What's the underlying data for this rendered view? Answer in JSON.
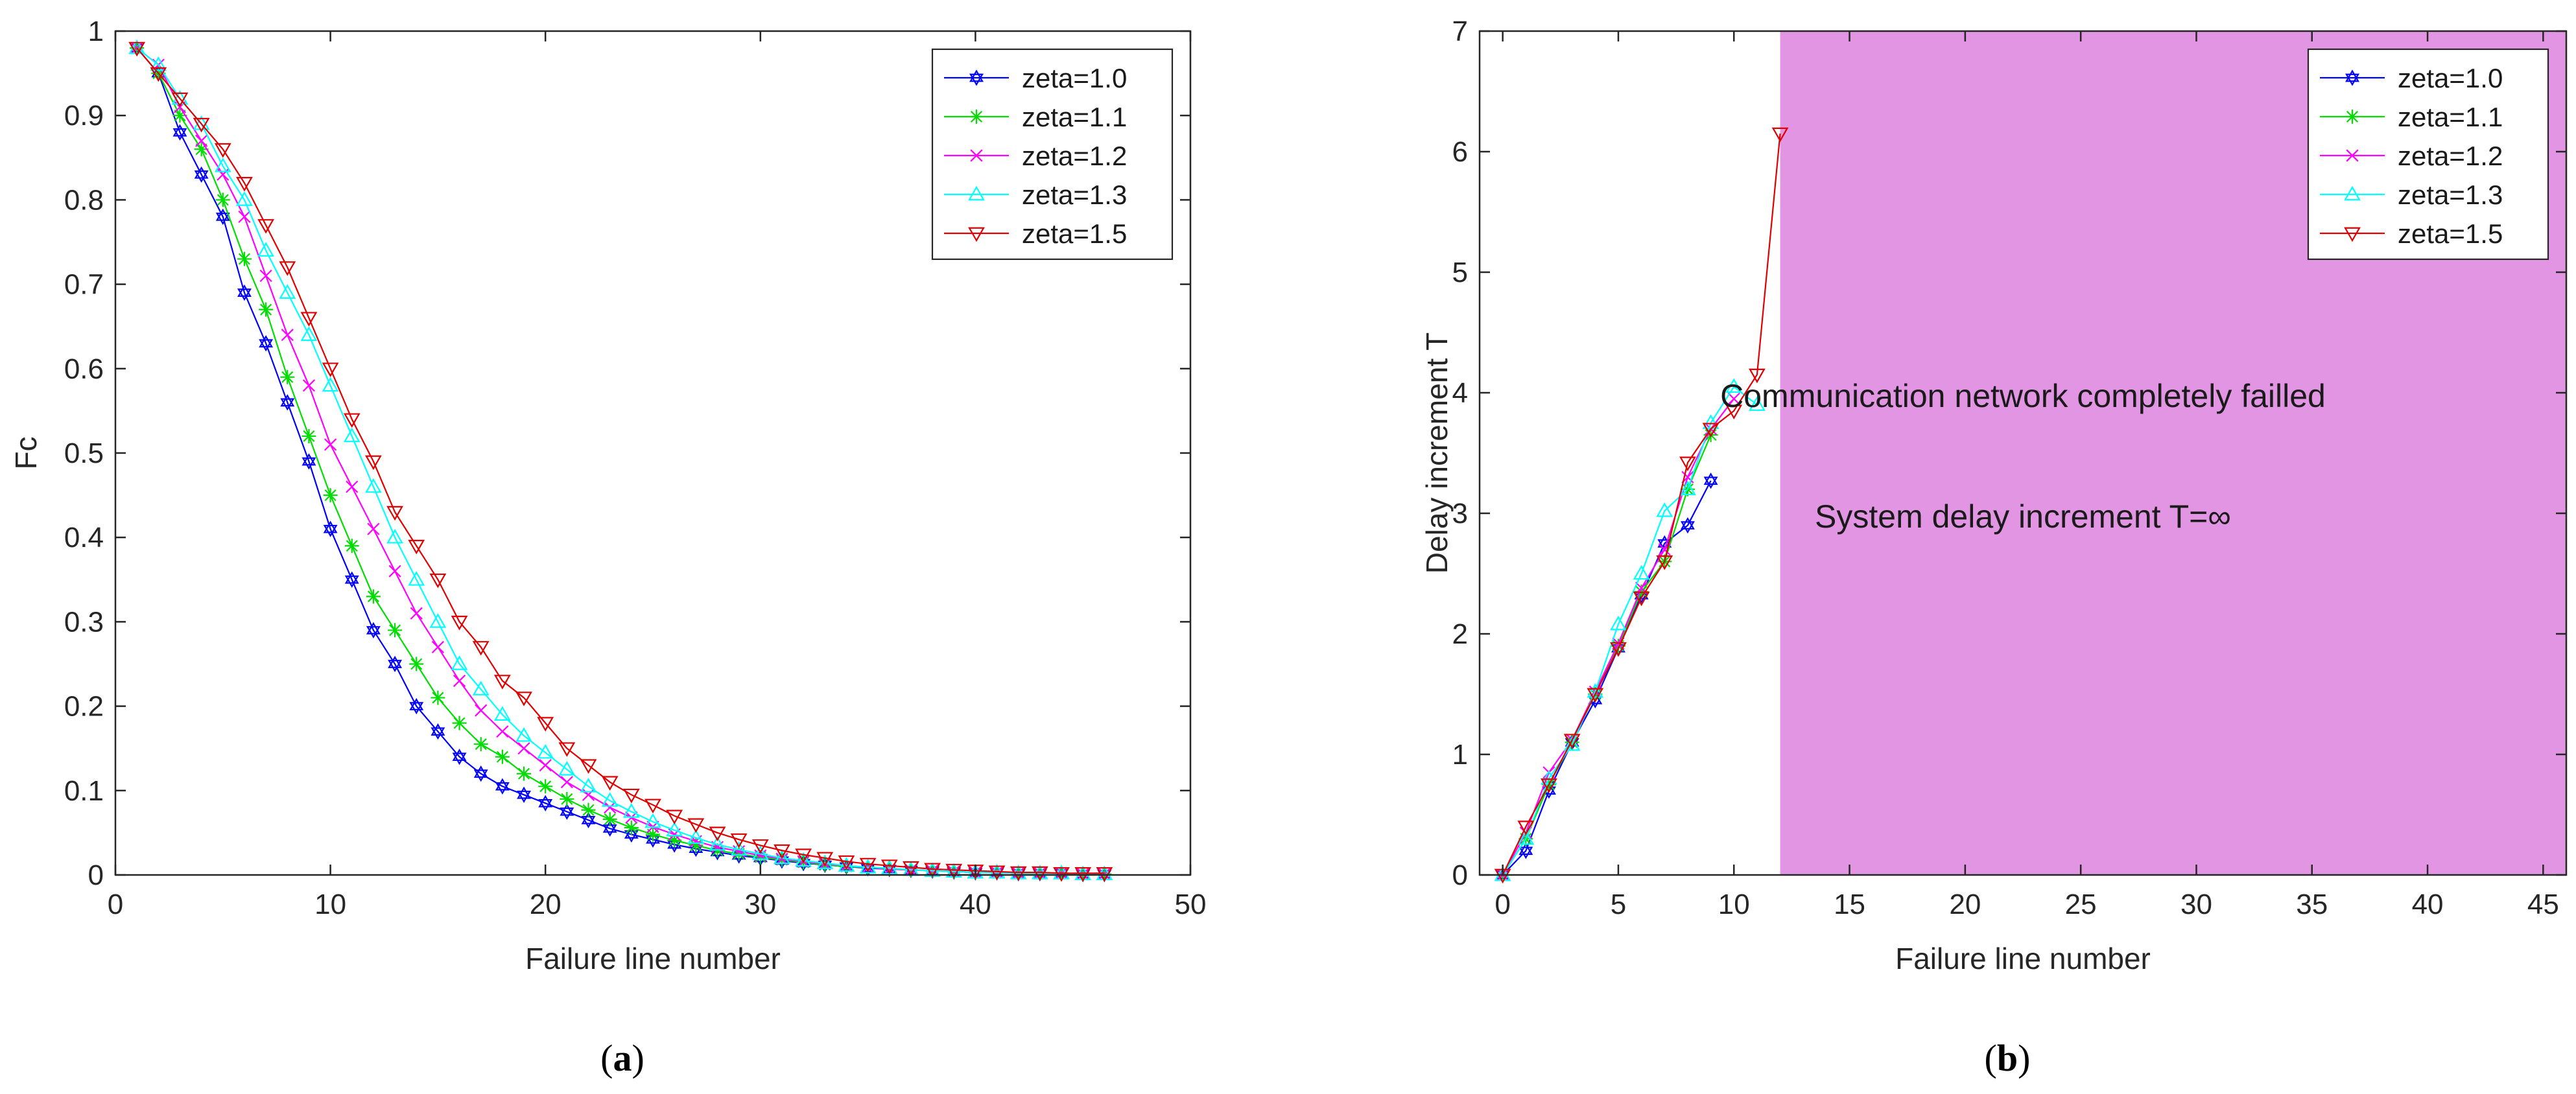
{
  "chart_data": [
    {
      "id": "a",
      "type": "line",
      "caption_label": "a",
      "title": "",
      "xlabel": "Failure line number",
      "ylabel": "Fc",
      "xlim": [
        0,
        50
      ],
      "ylim": [
        0,
        1
      ],
      "xticks": [
        0,
        10,
        20,
        30,
        40,
        50
      ],
      "xtick_labels": [
        "0",
        "10",
        "20",
        "30",
        "40",
        "50"
      ],
      "yticks": [
        0,
        0.1,
        0.2,
        0.3,
        0.4,
        0.5,
        0.6,
        0.7,
        0.8,
        0.9,
        1
      ],
      "ytick_labels": [
        "0",
        "0.1",
        "0.2",
        "0.3",
        "0.4",
        "0.5",
        "0.6",
        "0.7",
        "0.8",
        "0.9",
        "1"
      ],
      "grid": false,
      "legend_position": "top-right",
      "x": [
        1,
        2,
        3,
        4,
        5,
        6,
        7,
        8,
        9,
        10,
        11,
        12,
        13,
        14,
        15,
        16,
        17,
        18,
        19,
        20,
        21,
        22,
        23,
        24,
        25,
        26,
        27,
        28,
        29,
        30,
        31,
        32,
        33,
        34,
        35,
        36,
        37,
        38,
        39,
        40,
        41,
        42,
        43,
        44,
        45,
        46
      ],
      "series": [
        {
          "name": "zeta=1.0",
          "color": "#0000ff",
          "marker": "hexagram",
          "values": [
            0.98,
            0.95,
            0.88,
            0.83,
            0.78,
            0.69,
            0.63,
            0.56,
            0.49,
            0.41,
            0.35,
            0.29,
            0.25,
            0.2,
            0.17,
            0.14,
            0.12,
            0.105,
            0.095,
            0.085,
            0.075,
            0.065,
            0.055,
            0.048,
            0.042,
            0.036,
            0.031,
            0.027,
            0.023,
            0.02,
            0.017,
            0.014,
            0.012,
            0.01,
            0.008,
            0.007,
            0.006,
            0.005,
            0.004,
            0.003,
            0.003,
            0.002,
            0.002,
            0.002,
            0.001,
            0.001
          ]
        },
        {
          "name": "zeta=1.1",
          "color": "#00dd00",
          "marker": "asterisk",
          "values": [
            0.98,
            0.95,
            0.9,
            0.86,
            0.8,
            0.73,
            0.67,
            0.59,
            0.52,
            0.45,
            0.39,
            0.33,
            0.29,
            0.25,
            0.21,
            0.18,
            0.155,
            0.14,
            0.12,
            0.105,
            0.09,
            0.077,
            0.066,
            0.056,
            0.048,
            0.041,
            0.035,
            0.029,
            0.025,
            0.021,
            0.018,
            0.015,
            0.012,
            0.01,
            0.009,
            0.007,
            0.006,
            0.005,
            0.004,
            0.003,
            0.003,
            0.002,
            0.002,
            0.002,
            0.001,
            0.001
          ]
        },
        {
          "name": "zeta=1.2",
          "color": "#ff00ff",
          "marker": "x",
          "values": [
            0.98,
            0.96,
            0.91,
            0.87,
            0.83,
            0.78,
            0.71,
            0.64,
            0.58,
            0.51,
            0.46,
            0.41,
            0.36,
            0.31,
            0.27,
            0.23,
            0.195,
            0.17,
            0.15,
            0.13,
            0.11,
            0.095,
            0.08,
            0.068,
            0.057,
            0.048,
            0.04,
            0.033,
            0.028,
            0.023,
            0.019,
            0.016,
            0.013,
            0.011,
            0.009,
            0.007,
            0.006,
            0.005,
            0.004,
            0.003,
            0.003,
            0.002,
            0.002,
            0.002,
            0.001,
            0.001
          ]
        },
        {
          "name": "zeta=1.3",
          "color": "#00ffff",
          "marker": "triangle-up",
          "values": [
            0.98,
            0.96,
            0.92,
            0.89,
            0.84,
            0.8,
            0.74,
            0.69,
            0.64,
            0.58,
            0.52,
            0.46,
            0.4,
            0.35,
            0.3,
            0.25,
            0.22,
            0.19,
            0.165,
            0.145,
            0.125,
            0.105,
            0.088,
            0.075,
            0.063,
            0.053,
            0.044,
            0.036,
            0.03,
            0.025,
            0.02,
            0.017,
            0.014,
            0.011,
            0.009,
            0.008,
            0.006,
            0.005,
            0.004,
            0.003,
            0.003,
            0.002,
            0.002,
            0.002,
            0.001,
            0.001
          ]
        },
        {
          "name": "zeta=1.5",
          "color": "#e00000",
          "marker": "triangle-down",
          "values": [
            0.98,
            0.95,
            0.92,
            0.89,
            0.86,
            0.82,
            0.77,
            0.72,
            0.66,
            0.6,
            0.54,
            0.49,
            0.43,
            0.39,
            0.35,
            0.3,
            0.27,
            0.23,
            0.21,
            0.18,
            0.15,
            0.13,
            0.11,
            0.095,
            0.083,
            0.07,
            0.06,
            0.05,
            0.042,
            0.035,
            0.029,
            0.024,
            0.02,
            0.016,
            0.013,
            0.011,
            0.009,
            0.007,
            0.006,
            0.005,
            0.004,
            0.003,
            0.003,
            0.002,
            0.002,
            0.002
          ]
        }
      ]
    },
    {
      "id": "b",
      "type": "line",
      "caption_label": "b",
      "title": "",
      "xlabel": "Failure line number",
      "ylabel": "Delay increment T",
      "xlim": [
        -1,
        46
      ],
      "ylim": [
        0,
        7
      ],
      "xticks": [
        0,
        5,
        10,
        15,
        20,
        25,
        30,
        35,
        40,
        45
      ],
      "xtick_labels": [
        "0",
        "5",
        "10",
        "15",
        "20",
        "25",
        "30",
        "35",
        "40",
        "45"
      ],
      "yticks": [
        0,
        1,
        2,
        3,
        4,
        5,
        6,
        7
      ],
      "ytick_labels": [
        "0",
        "1",
        "2",
        "3",
        "4",
        "5",
        "6",
        "7"
      ],
      "grid": false,
      "legend_position": "top-right",
      "shaded_region": {
        "x_from": 12,
        "x_to": 46,
        "color": "#e295e2"
      },
      "annotations": [
        {
          "text": "Communication network completely failled",
          "x": 29,
          "y": 3.95
        },
        {
          "text": "System delay increment T=∞",
          "x": 29,
          "y": 2.95
        }
      ],
      "series": [
        {
          "name": "zeta=1.0",
          "color": "#0000ff",
          "marker": "hexagram",
          "x": [
            0,
            1,
            2,
            3,
            4,
            5,
            6,
            7,
            8,
            9
          ],
          "values": [
            0,
            0.2,
            0.7,
            1.1,
            1.45,
            1.88,
            2.32,
            2.75,
            2.9,
            3.27
          ]
        },
        {
          "name": "zeta=1.1",
          "color": "#00dd00",
          "marker": "asterisk",
          "x": [
            0,
            1,
            2,
            3,
            4,
            5,
            6,
            7,
            8,
            9
          ],
          "values": [
            0,
            0.3,
            0.75,
            1.1,
            1.5,
            1.9,
            2.35,
            2.6,
            3.2,
            3.65
          ]
        },
        {
          "name": "zeta=1.2",
          "color": "#ff00ff",
          "marker": "x",
          "x": [
            0,
            1,
            2,
            3,
            4,
            5,
            6,
            7,
            8,
            9,
            10
          ],
          "values": [
            0,
            0.35,
            0.85,
            1.12,
            1.52,
            1.92,
            2.38,
            2.7,
            3.3,
            3.7,
            3.95
          ]
        },
        {
          "name": "zeta=1.3",
          "color": "#00ffff",
          "marker": "triangle-up",
          "x": [
            0,
            1,
            2,
            3,
            4,
            5,
            6,
            7,
            8,
            9,
            10,
            11
          ],
          "values": [
            0,
            0.3,
            0.8,
            1.08,
            1.52,
            2.08,
            2.5,
            3.02,
            3.2,
            3.75,
            4.05,
            3.9
          ]
        },
        {
          "name": "zeta=1.5",
          "color": "#e00000",
          "marker": "triangle-down",
          "x": [
            0,
            1,
            2,
            3,
            4,
            5,
            6,
            7,
            8,
            9,
            10,
            11,
            12
          ],
          "values": [
            0,
            0.4,
            0.75,
            1.12,
            1.5,
            1.88,
            2.3,
            2.6,
            3.42,
            3.7,
            3.85,
            4.15,
            6.15
          ]
        }
      ]
    }
  ]
}
